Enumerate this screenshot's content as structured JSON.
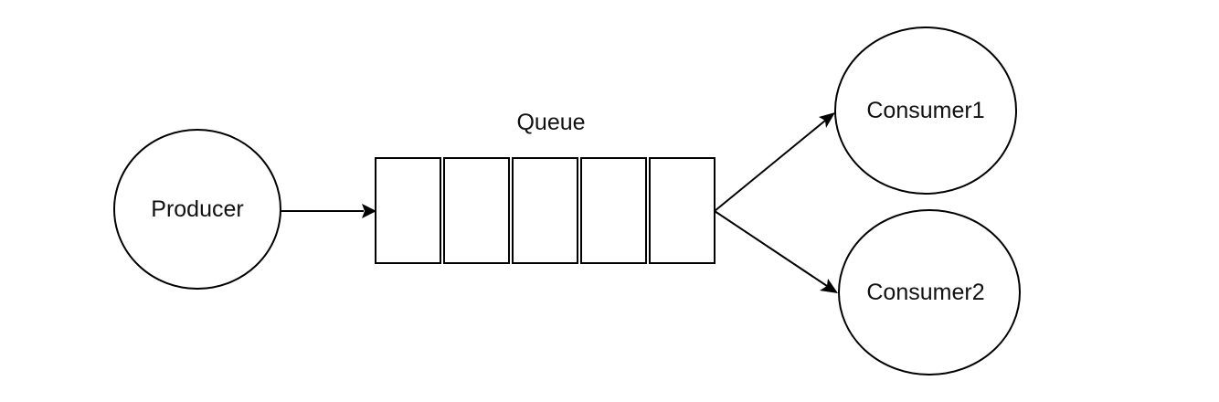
{
  "diagram": {
    "queue": {
      "label": "Queue",
      "slot_count": 5
    },
    "nodes": {
      "producer": {
        "label": "Producer"
      },
      "consumer1": {
        "label": "Consumer1"
      },
      "consumer2": {
        "label": "Consumer2"
      }
    },
    "edges": [
      {
        "from": "Producer",
        "to": "Queue"
      },
      {
        "from": "Queue",
        "to": "Consumer1"
      },
      {
        "from": "Queue",
        "to": "Consumer2"
      }
    ],
    "colors": {
      "stroke": "#000000",
      "fill": "#ffffff",
      "text": "#111111"
    }
  }
}
